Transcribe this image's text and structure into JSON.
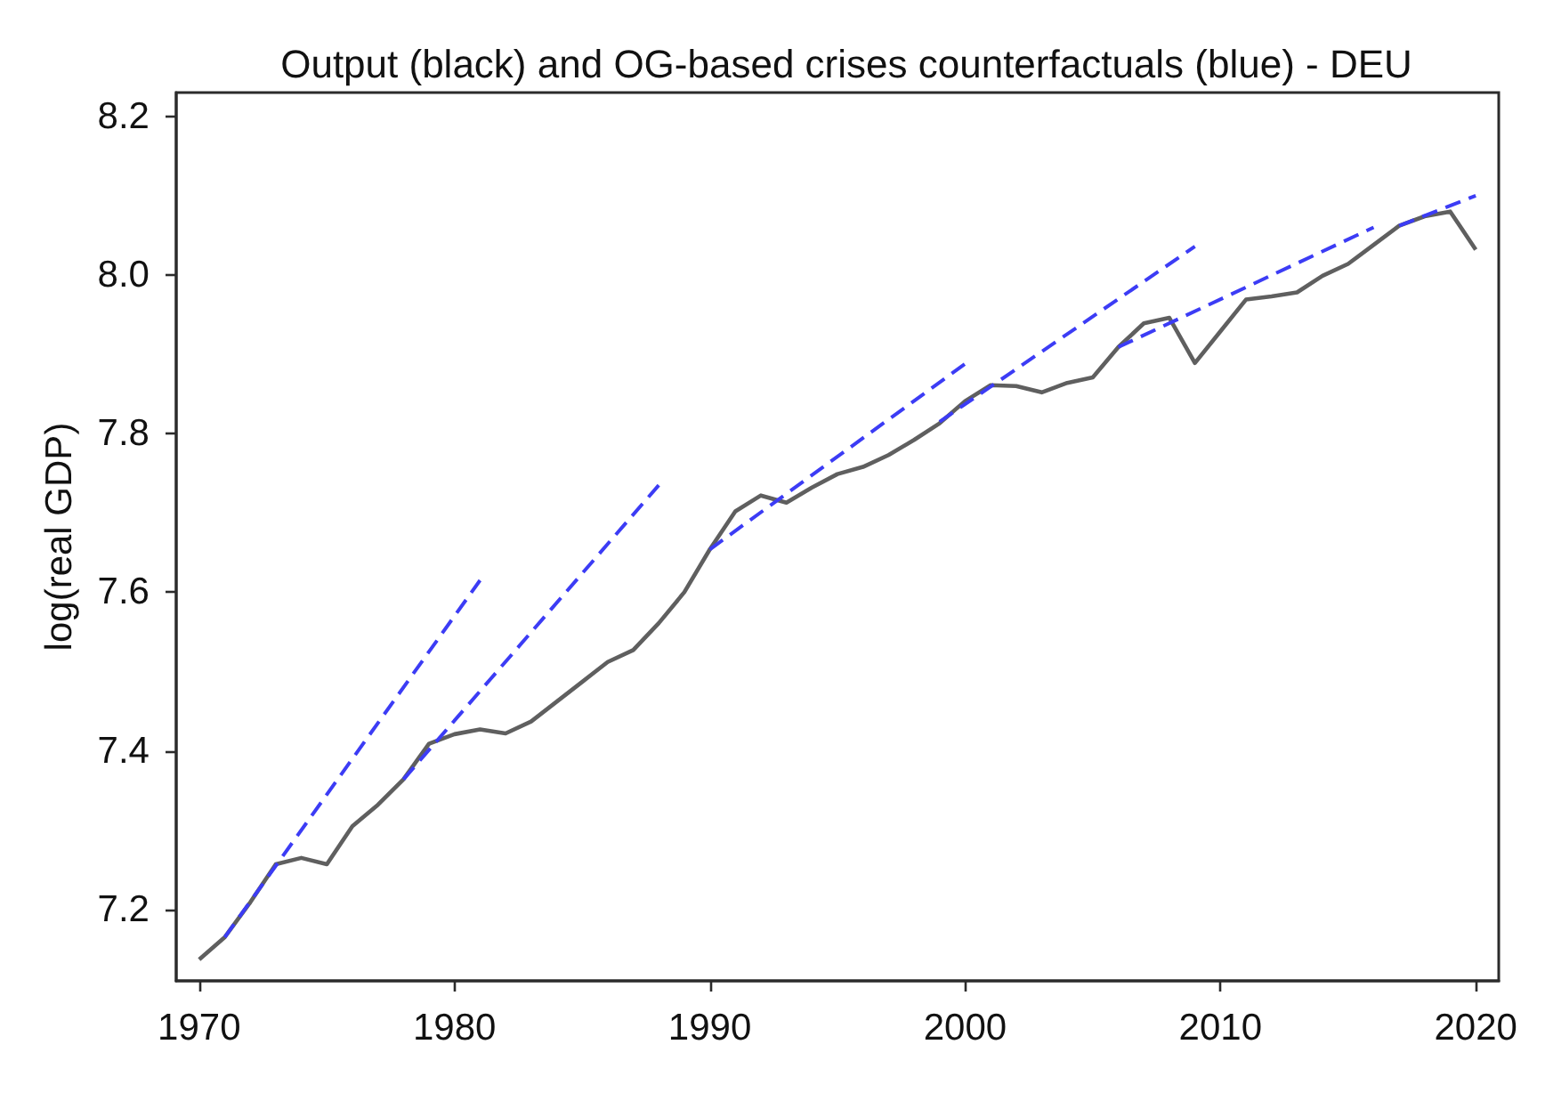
{
  "chart_data": {
    "type": "line",
    "title": "Output (black) and OG-based crises counterfactuals (blue) - DEU",
    "ylabel": "log(real GDP)",
    "xlim": [
      1969.1,
      2020.9
    ],
    "xticks": [
      1970,
      1980,
      1990,
      2000,
      2010,
      2020
    ],
    "ylim": [
      7.11,
      8.23
    ],
    "yticks": [
      7.2,
      7.4,
      7.6,
      7.8,
      {
        "value": 8,
        "label": "8.0"
      },
      8.2
    ],
    "grid": false,
    "marker": "none",
    "series": [
      {
        "color": "#5f5f5f",
        "line_style": "solid",
        "x": [
          1970,
          1971,
          1972,
          1973,
          1974,
          1975,
          1976,
          1977,
          1978,
          1979,
          1980,
          1981,
          1982,
          1983,
          1984,
          1985,
          1986,
          1987,
          1988,
          1989,
          1990,
          1991,
          1992,
          1993,
          1994,
          1995,
          1996,
          1997,
          1998,
          1999,
          2000,
          2001,
          2002,
          2003,
          2004,
          2005,
          2006,
          2007,
          2008,
          2009,
          2010,
          2011,
          2012,
          2013,
          2014,
          2015,
          2016,
          2017,
          2018,
          2019,
          2020
        ],
        "values": [
          7.137,
          7.165,
          7.209,
          7.257,
          7.265,
          7.257,
          7.305,
          7.332,
          7.364,
          7.409,
          7.421,
          7.427,
          7.422,
          7.437,
          7.462,
          7.487,
          7.512,
          7.527,
          7.561,
          7.6,
          7.654,
          7.702,
          7.722,
          7.713,
          7.732,
          7.749,
          7.758,
          7.773,
          7.792,
          7.813,
          7.841,
          7.861,
          7.86,
          7.852,
          7.864,
          7.871,
          7.909,
          7.939,
          7.946,
          7.889,
          7.929,
          7.969,
          7.973,
          7.978,
          7.999,
          8.014,
          8.038,
          8.062,
          8.074,
          8.08,
          8.032
        ]
      },
      {
        "color": "#3c3cf5",
        "line_style": "dashed",
        "x": [
          1971,
          1981
        ],
        "values": [
          7.165,
          7.615
        ]
      },
      {
        "color": "#3c3cf5",
        "line_style": "dashed",
        "x": [
          1978,
          1988
        ],
        "values": [
          7.364,
          7.735
        ]
      },
      {
        "color": "#3c3cf5",
        "line_style": "dashed",
        "x": [
          1990,
          2000
        ],
        "values": [
          7.654,
          7.888
        ]
      },
      {
        "color": "#3c3cf5",
        "line_style": "dashed",
        "x": [
          1999,
          2009
        ],
        "values": [
          7.815,
          8.036
        ]
      },
      {
        "color": "#3c3cf5",
        "line_style": "dashed",
        "x": [
          2006,
          2016
        ],
        "values": [
          7.909,
          8.06
        ]
      },
      {
        "color": "#3c3cf5",
        "line_style": "dashed",
        "x": [
          2017,
          2020
        ],
        "values": [
          8.062,
          8.1
        ]
      }
    ]
  }
}
